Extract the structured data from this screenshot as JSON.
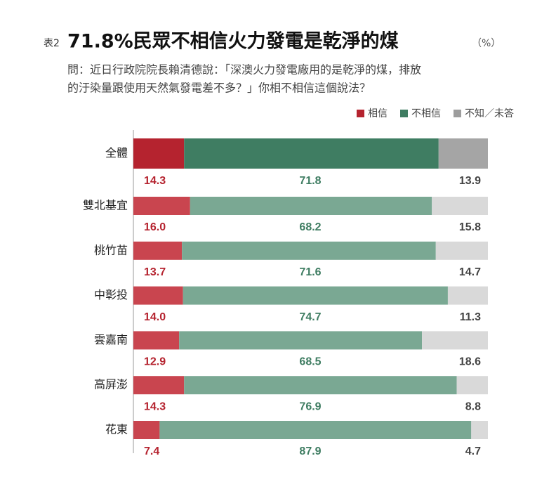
{
  "chart_data": {
    "type": "stacked-bar-horizontal",
    "title_prefix": "表2",
    "title": "71.8%民眾不相信火力發電是乾淨的煤",
    "title_unit": "（%）",
    "subtitle": [
      "問：近日行政院院長賴清德說：「深澳火力發電廠用的是乾淨的煤，排放",
      "的汙染量跟使用天然氣發電差不多？」你相不相信這個說法？"
    ],
    "categories": [
      "全體",
      "雙北基宜",
      "桃竹苗",
      "中彰投",
      "雲嘉南",
      "高屏澎",
      "花東"
    ],
    "xlim": [
      0,
      100
    ],
    "series": [
      {
        "name": "相信",
        "color": "#b5232f",
        "label_color": "#b5232f",
        "colors": [
          "#b5232f",
          "#c9454f",
          "#c9454f",
          "#c9454f",
          "#c9454f",
          "#c9454f",
          "#c9454f"
        ],
        "values": [
          14.3,
          16.0,
          13.7,
          14.0,
          12.9,
          14.3,
          7.4
        ],
        "value_labels": [
          "14.3",
          "16.0",
          "13.7",
          "14.0",
          "12.9",
          "14.3",
          "7.4"
        ]
      },
      {
        "name": "不相信",
        "color": "#3f7d62",
        "label_color": "#3f7d62",
        "colors": [
          "#3f7d62",
          "#7aa893",
          "#7aa893",
          "#7aa893",
          "#7aa893",
          "#7aa893",
          "#7aa893"
        ],
        "values": [
          71.8,
          68.2,
          71.6,
          74.7,
          68.5,
          76.9,
          87.9
        ],
        "value_labels": [
          "71.8",
          "68.2",
          "71.6",
          "74.7",
          "68.5",
          "76.9",
          "87.9"
        ]
      },
      {
        "name": "不知／未答",
        "color": "#9d9d9d",
        "label_color": "#444444",
        "colors": [
          "#a5a5a5",
          "#d9d9d9",
          "#d9d9d9",
          "#d9d9d9",
          "#d9d9d9",
          "#d9d9d9",
          "#d9d9d9"
        ],
        "values": [
          13.9,
          15.8,
          14.7,
          11.3,
          18.6,
          8.8,
          4.7
        ],
        "value_labels": [
          "13.9",
          "15.8",
          "14.7",
          "11.3",
          "18.6",
          "8.8",
          "4.7"
        ]
      }
    ]
  }
}
